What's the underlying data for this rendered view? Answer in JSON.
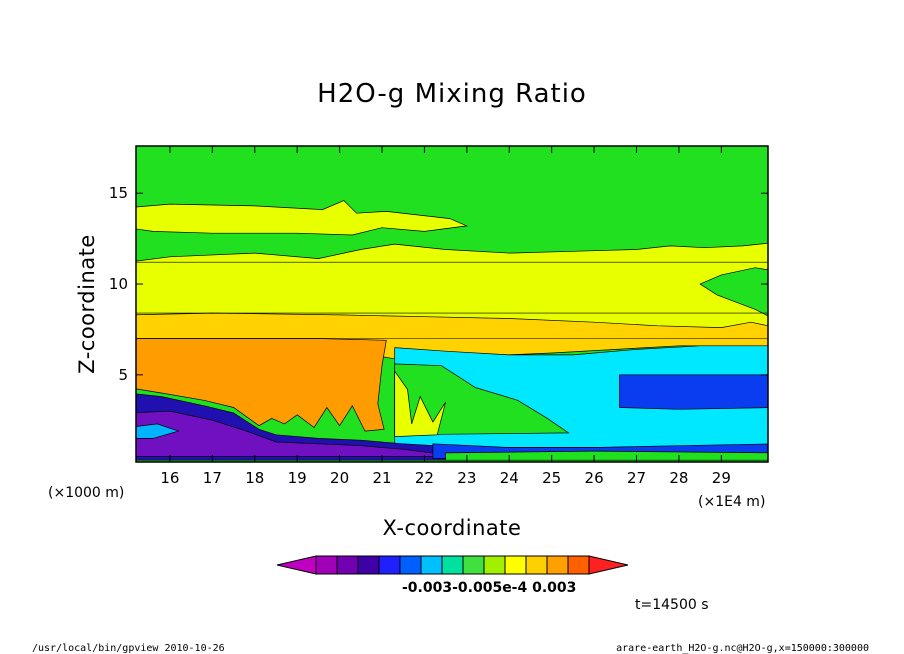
{
  "chart_data": {
    "type": "heatmap",
    "title": "H2O-g Mixing Ratio",
    "xlabel": "X-coordinate",
    "ylabel": "Z-coordinate",
    "x_unit_left": "(×1000 m)",
    "x_unit_right": "(×1E4 m)",
    "xlim": [
      15.2,
      30.1
    ],
    "ylim": [
      0.2,
      17.6
    ],
    "x_ticks": [
      16,
      17,
      18,
      19,
      20,
      21,
      22,
      23,
      24,
      25,
      26,
      27,
      28,
      29
    ],
    "y_ticks": [
      5,
      10,
      15
    ],
    "time_label": "t=14500 s",
    "colorbar": {
      "colors": [
        "#c000c0",
        "#a000b8",
        "#7000b0",
        "#4000a8",
        "#2020ff",
        "#0060ff",
        "#00c0ff",
        "#00e0a0",
        "#40e040",
        "#a0f000",
        "#ffff00",
        "#ffd000",
        "#ffa000",
        "#ff6000",
        "#ff2020"
      ],
      "tick_labels": [
        "-0.003",
        "-0.005e-4",
        "0.003"
      ],
      "label_display": "-0.003-0.005e-4   0.003"
    },
    "band_colors": {
      "green": "#20e020",
      "yellow": "#e8ff00",
      "gold": "#ffd200",
      "orange": "#ff9c00",
      "cyan": "#00e8ff",
      "blue": "#0a3cf0",
      "lightblue": "#00b4ff",
      "violet": "#7010c0",
      "indigo": "#2010b0"
    }
  },
  "footer": {
    "left": "/usr/local/bin/gpview   2010-10-26",
    "right": "arare-earth_H2O-g.nc@H2O-g,x=150000:300000"
  }
}
